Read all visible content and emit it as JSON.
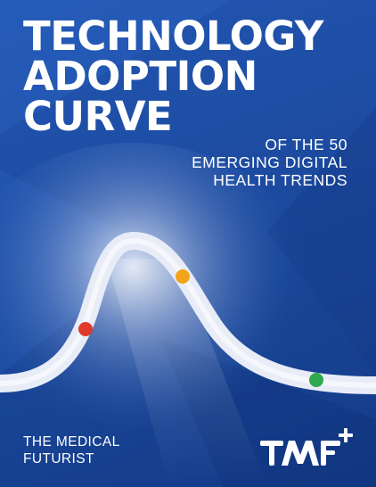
{
  "cover": {
    "title_lines": [
      "TECHNOLOGY",
      "ADOPTION",
      "CURVE"
    ],
    "subtitle_lines": [
      "OF THE 50",
      "EMERGING DIGITAL",
      "HEALTH TRENDS"
    ],
    "publisher_lines": [
      "THE MEDICAL",
      "FUTURIST"
    ],
    "logo_text": "TMF+"
  },
  "curve_markers": [
    {
      "name": "red-marker",
      "color": "#e03a2a"
    },
    {
      "name": "orange-marker",
      "color": "#f2a51a"
    },
    {
      "name": "green-marker",
      "color": "#2fa84f"
    }
  ],
  "colors": {
    "background": "#1e4aa0",
    "curve": "#e8ecf7",
    "text": "#ffffff"
  }
}
